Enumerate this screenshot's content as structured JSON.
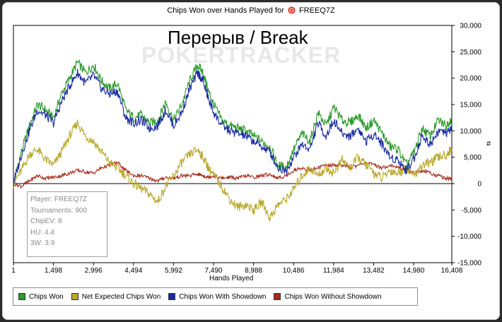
{
  "watermark": "POKERTRACKER",
  "info_box": {
    "player": "Player: FREEQ7Z",
    "tournaments": "Tournaments: 900",
    "chipev": "ChipEV: 8",
    "hu": "HU: 4.4",
    "threew": "3W: 3.9"
  },
  "chart_data": {
    "type": "line",
    "title": "Chips Won over Hands Played for",
    "player": "FREEQ7Z",
    "annotation": "Перерыв / Break",
    "xlabel": "Hands Played",
    "ylabel": "#",
    "xlim": [
      1,
      16408
    ],
    "ylim": [
      -15000,
      30000
    ],
    "x_ticks": [
      1,
      1498,
      2996,
      4494,
      5992,
      7490,
      8988,
      10486,
      11984,
      13482,
      14980,
      16408
    ],
    "x_tick_labels": [
      "1",
      "1,498",
      "2,996",
      "4,494",
      "5,992",
      "7,490",
      "8,988",
      "10,486",
      "11,984",
      "13,482",
      "14,980",
      "16,408"
    ],
    "y_ticks": [
      30000,
      25000,
      20000,
      15000,
      10000,
      5000,
      0,
      -5000,
      -10000,
      -15000
    ],
    "y_tick_labels": [
      "30,000",
      "25,000",
      "20,000",
      "15,000",
      "10,000",
      "5,000",
      "0",
      "-5,000",
      "-10,000",
      "-15,000"
    ],
    "y_axis_side": "right",
    "grid": false,
    "legend": "bottom",
    "x": [
      1,
      300,
      600,
      900,
      1200,
      1500,
      1800,
      2100,
      2400,
      2700,
      3000,
      3300,
      3600,
      3900,
      4200,
      4500,
      4800,
      5100,
      5400,
      5700,
      6000,
      6300,
      6600,
      6900,
      7100,
      7300,
      7500,
      7800,
      8100,
      8400,
      8700,
      9000,
      9300,
      9600,
      9900,
      10200,
      10500,
      10800,
      11100,
      11400,
      11700,
      12000,
      12300,
      12600,
      12900,
      13200,
      13500,
      13800,
      14100,
      14400,
      14700,
      15000,
      15300,
      15600,
      15900,
      16200,
      16408
    ],
    "series": [
      {
        "name": "Chips Won",
        "color": "#2a9a2a",
        "values": [
          0,
          6000,
          11000,
          15000,
          14000,
          12500,
          17000,
          20000,
          23000,
          21000,
          22500,
          19500,
          18000,
          19000,
          14000,
          12500,
          13000,
          11500,
          12000,
          15500,
          12000,
          15000,
          19500,
          22500,
          21000,
          17500,
          15000,
          12000,
          11000,
          10500,
          10000,
          9000,
          8000,
          7000,
          3500,
          3000,
          6500,
          9500,
          8000,
          13500,
          11000,
          14500,
          12000,
          11500,
          13000,
          10500,
          12000,
          9500,
          7000,
          6500,
          3500,
          6000,
          10500,
          9000,
          12000,
          11000,
          12500
        ]
      },
      {
        "name": "Net Expected Chips Won",
        "color": "#b8a82a",
        "values": [
          0,
          2500,
          5500,
          6500,
          4500,
          3500,
          6000,
          9000,
          11500,
          9000,
          8000,
          6000,
          4000,
          3000,
          1500,
          0,
          -1000,
          -2000,
          -3500,
          -500,
          1500,
          4000,
          5500,
          6500,
          5000,
          3000,
          1500,
          -500,
          -3000,
          -4500,
          -4000,
          -5000,
          -3500,
          -6500,
          -4000,
          -3000,
          -1000,
          1500,
          3000,
          1500,
          3000,
          2000,
          4500,
          3000,
          5000,
          3500,
          2000,
          1000,
          2500,
          2000,
          3000,
          1500,
          3500,
          4000,
          5000,
          5500,
          6500
        ]
      },
      {
        "name": "Chips Won With Showdown",
        "color": "#1a2aa0",
        "values": [
          0,
          5500,
          10000,
          14000,
          13000,
          11500,
          15500,
          18500,
          21000,
          19000,
          20500,
          18000,
          17000,
          17500,
          12500,
          11500,
          12000,
          10500,
          11000,
          14000,
          11000,
          13500,
          18000,
          21000,
          19500,
          16000,
          13500,
          11000,
          10000,
          9500,
          9000,
          8000,
          7000,
          6000,
          3000,
          2500,
          5000,
          7500,
          6500,
          11500,
          9000,
          12000,
          9500,
          9000,
          10500,
          8000,
          9500,
          7500,
          5000,
          4500,
          2500,
          5000,
          9000,
          7500,
          10000,
          9500,
          10500
        ]
      },
      {
        "name": "Chips Won Without Showdown",
        "color": "#a82a1a",
        "values": [
          0,
          -500,
          500,
          1500,
          1000,
          1200,
          1500,
          2000,
          2500,
          2200,
          2000,
          3000,
          3500,
          4000,
          2500,
          1500,
          1500,
          1000,
          500,
          1200,
          1000,
          1500,
          1500,
          1800,
          1500,
          1200,
          1500,
          1000,
          1200,
          1000,
          1500,
          1200,
          1500,
          1800,
          1000,
          1500,
          2500,
          3000,
          2500,
          3000,
          3500,
          3500,
          3500,
          3000,
          3500,
          4000,
          3500,
          3000,
          3500,
          3000,
          2500,
          2000,
          2500,
          2000,
          1500,
          1000,
          1000
        ]
      }
    ]
  }
}
